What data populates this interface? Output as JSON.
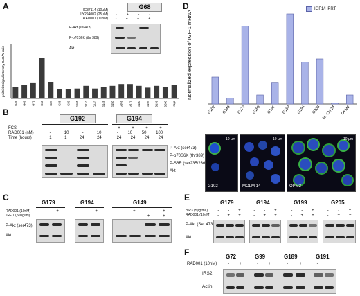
{
  "panelA": {
    "label": "A",
    "ylabel": "pAkt/Akt signal intensity RAD/W ratio",
    "inset": {
      "title": "G68",
      "treatments": [
        {
          "name": "IC87114 (10μM)",
          "values": [
            "-",
            "-",
            "+",
            "-"
          ]
        },
        {
          "name": "LY294002 (25μM)",
          "values": [
            "-",
            "+",
            "-",
            "-"
          ]
        },
        {
          "name": "RAD001 (10nM)",
          "values": [
            "-",
            "+",
            "+",
            "+"
          ]
        }
      ],
      "rows": [
        "P-Akt (ser473)",
        "P-p70S6K (thr 389)",
        "Akt"
      ]
    }
  },
  "panelB": {
    "label": "B",
    "groups": [
      "G192",
      "G194"
    ],
    "row_labels": [
      "FCS",
      "RAD001 (nM)",
      "Time (hours)"
    ],
    "g192": {
      "fcs": [
        "-",
        "-",
        "-",
        "-"
      ],
      "rad": [
        "-",
        "10",
        "-",
        "10"
      ],
      "time": [
        "1",
        "1",
        "24",
        "24"
      ]
    },
    "g194": {
      "fcs": [
        "+",
        "+",
        "+",
        "+"
      ],
      "rad": [
        "-",
        "10",
        "50",
        "100"
      ],
      "time": [
        "24",
        "24",
        "24",
        "24"
      ]
    },
    "bands": [
      "P-Akt (ser473)",
      "P-p70S6K (thr389)",
      "P-S6R (ser235/236)",
      "Akt"
    ]
  },
  "panelC": {
    "label": "C",
    "groups": [
      "G179",
      "G194",
      "G149"
    ],
    "rows": [
      "RAD001 (10nM)",
      "IGF-1 (50ng/ml)"
    ],
    "g179": {
      "rad": [
        "-",
        "+"
      ],
      "igf": [
        "-",
        "-"
      ]
    },
    "g194": {
      "rad": [
        "-",
        "+"
      ],
      "igf": [
        "-",
        "-"
      ]
    },
    "g149": {
      "rad": [
        "-",
        "+",
        "-",
        "+"
      ],
      "igf": [
        "-",
        "-",
        "+",
        "+"
      ]
    },
    "bands": [
      "P-Akt (ser473)",
      "Akt"
    ]
  },
  "panelD": {
    "label": "D",
    "legend": "IGF1/HPRT",
    "scale_bar": "10 µm",
    "images": [
      "G102",
      "MOLM 14",
      "OPM2"
    ]
  },
  "panelE": {
    "label": "E",
    "rows": [
      "αIR3 (5μg/mL)",
      "RAD001 (10nM)"
    ],
    "groups": [
      "G179",
      "G194",
      "G199",
      "G205"
    ],
    "airs": [
      "-",
      "-",
      "+"
    ],
    "rad": [
      "-",
      "+",
      "+"
    ],
    "bands": [
      "P-Akt (Ser 473)",
      "Akt"
    ]
  },
  "panelF": {
    "label": "F",
    "row": "RAD001 (10nM)",
    "groups": [
      "G72",
      "G99",
      "G189",
      "G191"
    ],
    "rad": [
      "-",
      "+"
    ],
    "bands": [
      "IRS2",
      "Actin"
    ]
  },
  "chart_data": [
    {
      "type": "bar",
      "panel": "A",
      "title": "",
      "xlabel": "",
      "ylabel": "pAkt/Akt signal intensity RAD/W ratio",
      "ylim": [
        0,
        6
      ],
      "categories": [
        "G39",
        "G69",
        "G71",
        "G68",
        "G87",
        "G88",
        "G89",
        "G101",
        "G110",
        "G143",
        "G149",
        "G150",
        "G161",
        "G179",
        "G180",
        "G194",
        "G199",
        "G200",
        "average"
      ],
      "values": [
        1.3,
        1.5,
        1.7,
        4.5,
        1.8,
        1.0,
        1.0,
        1.1,
        1.4,
        1.1,
        1.3,
        1.4,
        1.6,
        1.6,
        1.4,
        1.2,
        1.4,
        1.3,
        1.5
      ]
    },
    {
      "type": "bar",
      "panel": "D",
      "title": "",
      "xlabel": "",
      "ylabel": "Normalized expression of IGF-1 mRNA",
      "ylim": [
        0,
        0.03
      ],
      "legend": "IGF1/HPRT",
      "categories": [
        "G102",
        "G149",
        "G179",
        "G189",
        "G191",
        "G192",
        "G194",
        "G205",
        "MOLM 14",
        "OPM2"
      ],
      "values": [
        0.009,
        0.002,
        0.026,
        0.003,
        0.007,
        0.03,
        0.014,
        0.015,
        0.0003,
        0.003
      ]
    }
  ]
}
